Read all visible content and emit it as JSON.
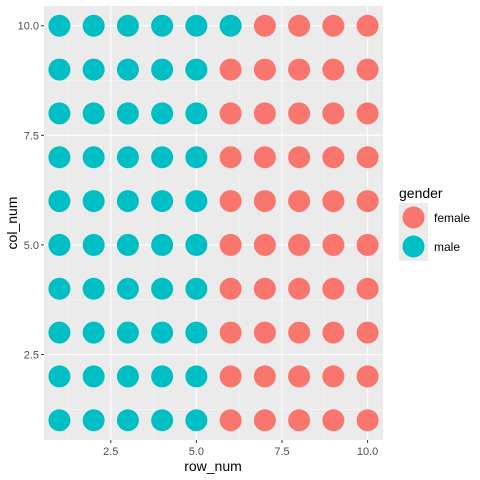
{
  "chart_data": {
    "type": "scatter",
    "xlabel": "row_num",
    "ylabel": "col_num",
    "x_ticks": [
      "2.5",
      "5.0",
      "7.5",
      "10.0"
    ],
    "x_tick_values": [
      2.5,
      5.0,
      7.5,
      10.0
    ],
    "y_ticks": [
      "2.5",
      "5.0",
      "7.5",
      "10.0"
    ],
    "y_tick_values": [
      2.5,
      5.0,
      7.5,
      10.0
    ],
    "xlim": [
      0.55,
      10.45
    ],
    "ylim": [
      0.55,
      10.45
    ],
    "grid": true,
    "legend": {
      "title": "gender",
      "position": "right",
      "entries": [
        {
          "label": "female",
          "color": "#F8766D"
        },
        {
          "label": "male",
          "color": "#00BFC4"
        }
      ]
    },
    "x": [
      1,
      2,
      3,
      4,
      5,
      6,
      7,
      8,
      9,
      10
    ],
    "y": [
      1,
      2,
      3,
      4,
      5,
      6,
      7,
      8,
      9,
      10
    ],
    "male_cols_per_row": [
      6,
      5,
      5,
      5,
      5,
      5,
      5,
      5,
      5,
      5
    ],
    "colors": {
      "female": "#F8766D",
      "male": "#00BFC4",
      "panel": "#EBEBEB",
      "grid_major": "#FFFFFF",
      "grid_minor": "#F5F5F5"
    }
  }
}
